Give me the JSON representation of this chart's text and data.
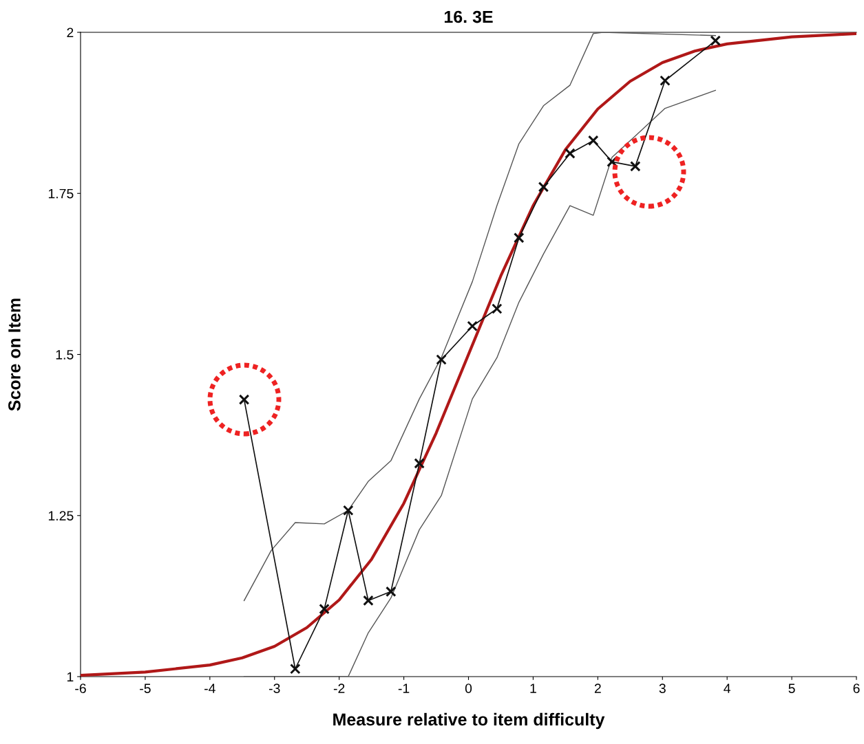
{
  "chart_data": {
    "type": "line",
    "title": "16. 3E",
    "xlabel": "Measure relative to item difficulty",
    "ylabel": "Score on Item",
    "xlim": [
      -6,
      6
    ],
    "xticks": [
      -6,
      -5,
      -4,
      -3,
      -2,
      -1,
      0,
      1,
      2,
      3,
      4,
      5,
      6
    ],
    "ylim": [
      1,
      2
    ],
    "yticks": [
      1,
      1.25,
      1.5,
      1.75,
      2
    ],
    "grid": false,
    "legend": false,
    "series": [
      {
        "color": "#555555",
        "x": [
          -3.47,
          -3.05,
          -2.68,
          -2.23,
          -1.86,
          -1.55,
          -1.2,
          -0.76,
          -0.42,
          0.06,
          0.44,
          0.78,
          1.16,
          1.57,
          1.93,
          2.08,
          3.82
        ],
        "values": [
          1.118,
          1.196,
          1.239,
          1.237,
          1.258,
          1.303,
          1.335,
          1.431,
          1.495,
          1.613,
          1.731,
          1.827,
          1.886,
          1.918,
          1.998,
          2.0,
          1.995
        ]
      },
      {
        "color": "#555555",
        "x": [
          -3.47,
          -1.86,
          -1.55,
          -1.2,
          -0.76,
          -0.42,
          0.06,
          0.44,
          0.78,
          1.16,
          1.57,
          1.93,
          2.22,
          2.58,
          3.04,
          3.82
        ],
        "values": [
          1.0,
          1.0,
          1.068,
          1.122,
          1.228,
          1.281,
          1.431,
          1.495,
          1.581,
          1.656,
          1.731,
          1.716,
          1.806,
          1.839,
          1.882,
          1.91
        ]
      },
      {
        "color": "#b01818",
        "x": [
          -6,
          -5,
          -4,
          -3.5,
          -3,
          -2.5,
          -2,
          -1.5,
          -1,
          -0.5,
          0,
          0.5,
          1,
          1.5,
          2,
          2.5,
          3,
          3.5,
          4,
          5,
          6
        ],
        "values": [
          1.002,
          1.007,
          1.018,
          1.029,
          1.047,
          1.076,
          1.119,
          1.182,
          1.269,
          1.378,
          1.5,
          1.622,
          1.731,
          1.818,
          1.881,
          1.924,
          1.953,
          1.971,
          1.982,
          1.993,
          1.998
        ]
      },
      {
        "color": "#111111",
        "marker": "cross",
        "x": [
          -3.47,
          -2.68,
          -2.23,
          -1.86,
          -1.55,
          -1.2,
          -0.76,
          -0.42,
          0.06,
          0.44,
          0.78,
          1.16,
          1.57,
          1.93,
          2.22,
          2.58,
          3.04,
          3.82
        ],
        "values": [
          1.43,
          1.012,
          1.105,
          1.258,
          1.118,
          1.132,
          1.331,
          1.492,
          1.544,
          1.571,
          1.681,
          1.76,
          1.812,
          1.832,
          1.799,
          1.792,
          1.925,
          1.987
        ]
      }
    ]
  }
}
